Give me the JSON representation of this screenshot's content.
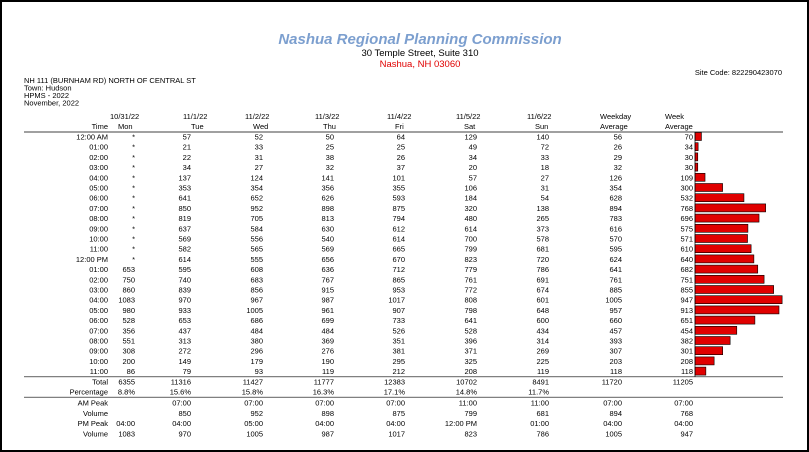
{
  "header": {
    "title": "Nashua Regional Planning Commission",
    "address": "30 Temple Street, Suite 310",
    "city": "Nashua, NH 03060",
    "site_code": "Site Code: 822290423070"
  },
  "info": [
    "NH 111 (BURNHAM RD) NORTH OF CENTRAL ST",
    "Town: Hudson",
    "HPMS - 2022",
    "November, 2022"
  ],
  "table": {
    "columns": [
      {
        "line2": "Time"
      },
      {
        "line1": "10/31/22",
        "line2": "Mon"
      },
      {
        "line1": "11/1/22",
        "line2": "Tue"
      },
      {
        "line1": "11/2/22",
        "line2": "Wed"
      },
      {
        "line1": "11/3/22",
        "line2": "Thu"
      },
      {
        "line1": "11/4/22",
        "line2": "Fri"
      },
      {
        "line1": "11/5/22",
        "line2": "Sat"
      },
      {
        "line1": "11/6/22",
        "line2": "Sun"
      },
      {
        "line1": "Weekday",
        "line2": "Average"
      },
      {
        "line1": "Week",
        "line2": "Average"
      }
    ],
    "rows": [
      {
        "label": "12:00 AM",
        "cells": [
          "*",
          57,
          52,
          50,
          64,
          129,
          140,
          56,
          70
        ]
      },
      {
        "label": "01:00",
        "cells": [
          "*",
          21,
          33,
          25,
          25,
          49,
          72,
          26,
          34
        ]
      },
      {
        "label": "02:00",
        "cells": [
          "*",
          22,
          31,
          38,
          26,
          34,
          33,
          29,
          30
        ]
      },
      {
        "label": "03:00",
        "cells": [
          "*",
          34,
          27,
          32,
          37,
          20,
          18,
          32,
          30
        ]
      },
      {
        "label": "04:00",
        "cells": [
          "*",
          137,
          124,
          141,
          101,
          57,
          27,
          126,
          109
        ]
      },
      {
        "label": "05:00",
        "cells": [
          "*",
          353,
          354,
          356,
          355,
          106,
          31,
          354,
          300
        ]
      },
      {
        "label": "06:00",
        "cells": [
          "*",
          641,
          652,
          626,
          593,
          184,
          54,
          628,
          532
        ]
      },
      {
        "label": "07:00",
        "cells": [
          "*",
          850,
          952,
          898,
          875,
          320,
          138,
          894,
          768
        ]
      },
      {
        "label": "08:00",
        "cells": [
          "*",
          819,
          705,
          813,
          794,
          480,
          265,
          783,
          696
        ]
      },
      {
        "label": "09:00",
        "cells": [
          "*",
          637,
          584,
          630,
          612,
          614,
          373,
          616,
          575
        ]
      },
      {
        "label": "10:00",
        "cells": [
          "*",
          569,
          556,
          540,
          614,
          700,
          578,
          570,
          571
        ]
      },
      {
        "label": "11:00",
        "cells": [
          "*",
          582,
          565,
          569,
          665,
          799,
          681,
          595,
          610
        ]
      },
      {
        "label": "12:00 PM",
        "cells": [
          "*",
          614,
          555,
          656,
          670,
          823,
          720,
          624,
          640
        ]
      },
      {
        "label": "01:00",
        "cells": [
          653,
          595,
          608,
          636,
          712,
          779,
          786,
          641,
          682
        ]
      },
      {
        "label": "02:00",
        "cells": [
          750,
          740,
          683,
          767,
          865,
          761,
          691,
          761,
          751
        ]
      },
      {
        "label": "03:00",
        "cells": [
          860,
          839,
          856,
          915,
          953,
          772,
          674,
          885,
          855
        ]
      },
      {
        "label": "04:00",
        "cells": [
          1083,
          970,
          967,
          987,
          1017,
          808,
          601,
          1005,
          947
        ]
      },
      {
        "label": "05:00",
        "cells": [
          980,
          933,
          1005,
          961,
          907,
          798,
          648,
          957,
          913
        ]
      },
      {
        "label": "06:00",
        "cells": [
          528,
          653,
          686,
          699,
          733,
          641,
          600,
          660,
          651
        ]
      },
      {
        "label": "07:00",
        "cells": [
          356,
          437,
          484,
          484,
          526,
          528,
          434,
          457,
          454
        ]
      },
      {
        "label": "08:00",
        "cells": [
          551,
          313,
          380,
          369,
          351,
          396,
          314,
          393,
          382
        ]
      },
      {
        "label": "09:00",
        "cells": [
          308,
          272,
          296,
          276,
          381,
          371,
          269,
          307,
          301
        ]
      },
      {
        "label": "10:00",
        "cells": [
          200,
          149,
          179,
          190,
          295,
          325,
          225,
          203,
          208
        ]
      },
      {
        "label": "11:00",
        "cells": [
          86,
          79,
          93,
          119,
          212,
          208,
          119,
          118,
          118
        ]
      }
    ],
    "summary": [
      {
        "label": "Total",
        "cells": [
          6355,
          11316,
          11427,
          11777,
          12383,
          10702,
          8491,
          11720,
          11205
        ]
      },
      {
        "label": "Percentage",
        "cells": [
          "8.8%",
          "15.6%",
          "15.8%",
          "16.3%",
          "17.1%",
          "14.8%",
          "11.7%",
          null,
          null
        ]
      },
      {
        "label": "AM Peak",
        "cells": [
          null,
          "07:00",
          "07:00",
          "07:00",
          "07:00",
          "11:00",
          "11:00",
          "07:00",
          "07:00"
        ]
      },
      {
        "label": "Volume",
        "cells": [
          null,
          850,
          952,
          898,
          875,
          799,
          681,
          894,
          768
        ]
      },
      {
        "label": "PM Peak",
        "cells": [
          "04:00",
          "04:00",
          "05:00",
          "04:00",
          "04:00",
          "12:00 PM",
          "01:00",
          "04:00",
          "04:00"
        ]
      },
      {
        "label": "Volume",
        "cells": [
          1083,
          970,
          1005,
          987,
          1017,
          823,
          786,
          1005,
          947
        ]
      }
    ]
  }
}
